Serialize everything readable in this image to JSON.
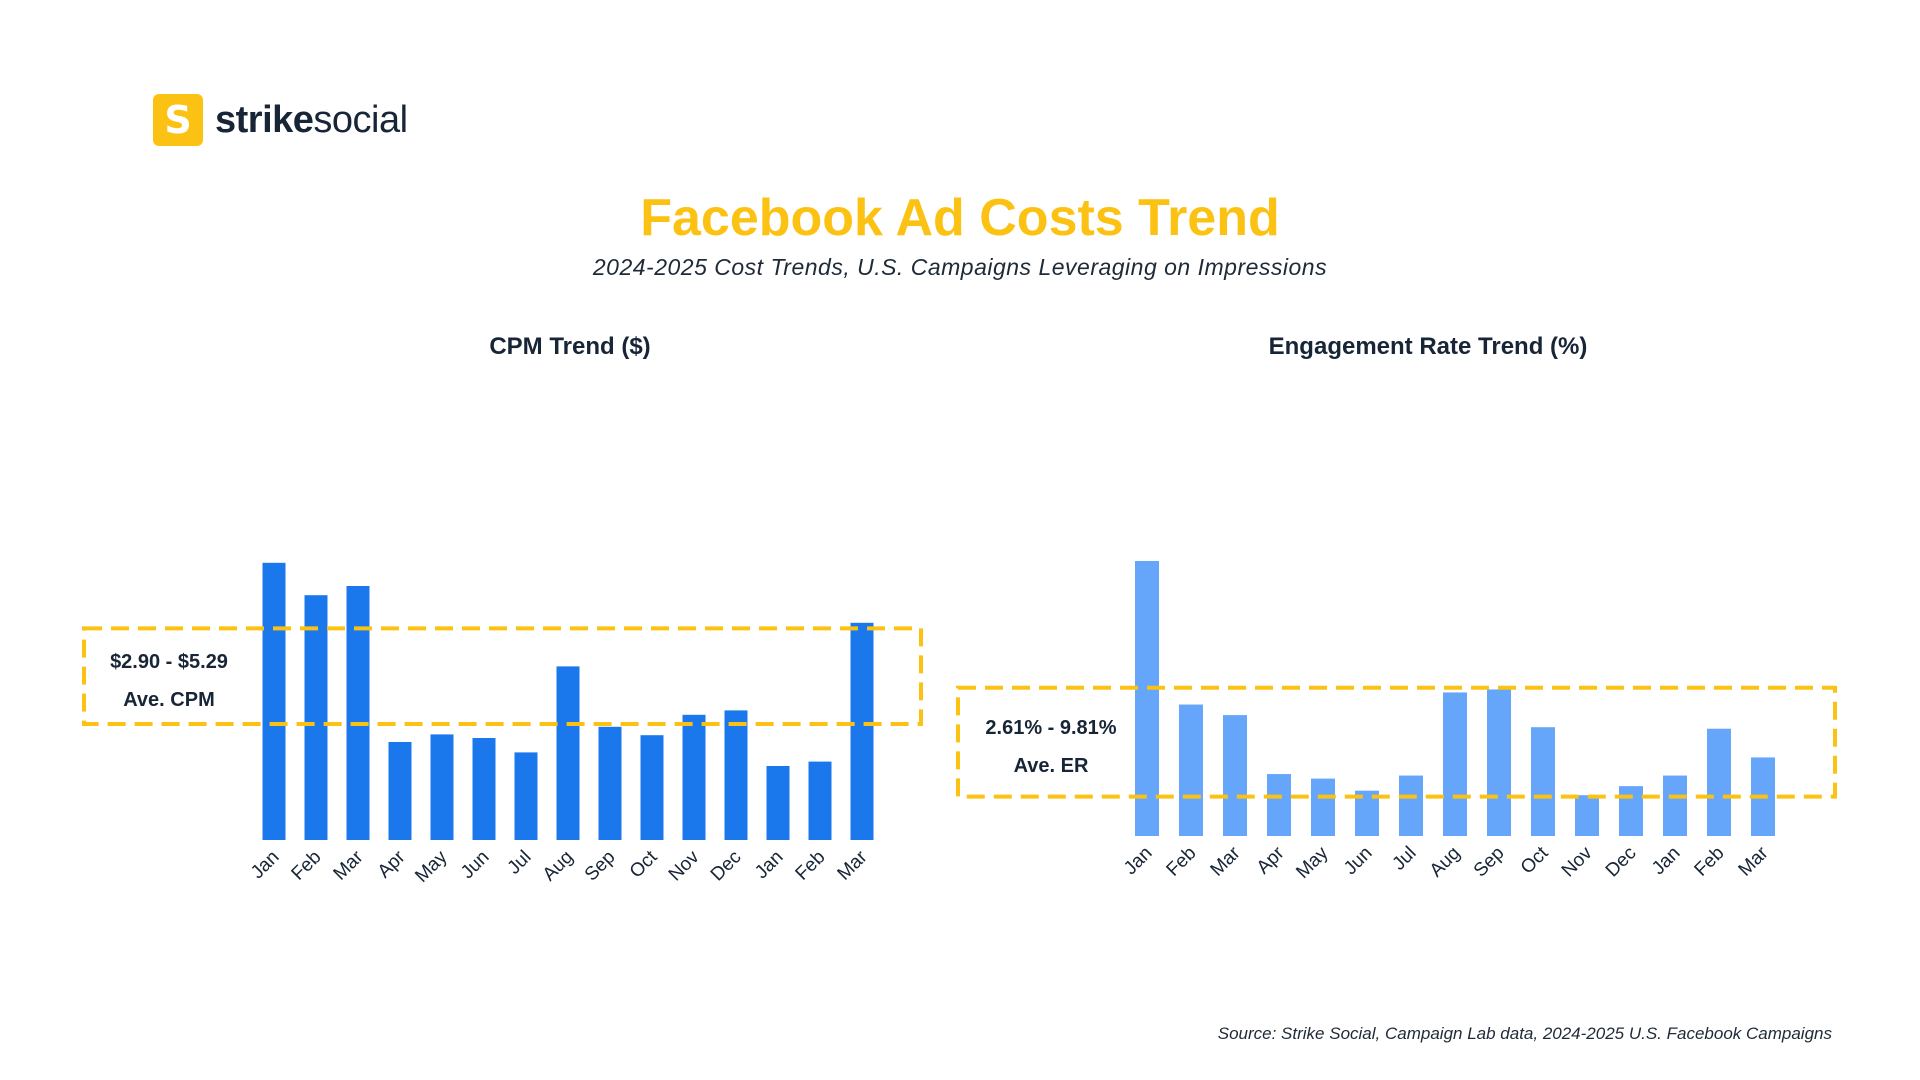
{
  "brand": {
    "mark": "S",
    "name_bold": "strike",
    "name_light": "social",
    "color": "#fcc213"
  },
  "header": {
    "title": "Facebook Ad Costs Trend",
    "subtitle": "2024-2025 Cost Trends, U.S. Campaigns Leveraging on Impressions"
  },
  "source": "Source: Strike Social, Campaign Lab data, 2024-2025 U.S. Facebook Campaigns",
  "chart_data": [
    {
      "type": "bar",
      "title": "CPM Trend ($)",
      "categories": [
        "Jan",
        "Feb",
        "Mar",
        "Apr",
        "May",
        "Jun",
        "Jul",
        "Aug",
        "Sep",
        "Oct",
        "Nov",
        "Dec",
        "Jan",
        "Feb",
        "Mar"
      ],
      "values": [
        6.93,
        6.12,
        6.35,
        2.45,
        2.64,
        2.55,
        2.19,
        4.34,
        2.83,
        2.62,
        3.13,
        3.24,
        1.85,
        1.96,
        5.43
      ],
      "ylim": [
        0,
        7
      ],
      "color": "#1a78ec",
      "band": {
        "range": [
          2.9,
          5.29
        ],
        "label": "$2.90 - $5.29",
        "caption": "Ave. CPM"
      }
    },
    {
      "type": "bar",
      "title": "Engagement Rate Trend (%)",
      "categories": [
        "Jan",
        "Feb",
        "Mar",
        "Apr",
        "May",
        "Jun",
        "Jul",
        "Aug",
        "Sep",
        "Oct",
        "Nov",
        "Dec",
        "Jan",
        "Feb",
        "Mar"
      ],
      "values": [
        18.2,
        8.7,
        8.0,
        4.1,
        3.8,
        3.0,
        4.0,
        9.5,
        9.7,
        7.2,
        2.7,
        3.3,
        4.0,
        7.1,
        5.2
      ],
      "ylim": [
        0,
        18.2
      ],
      "color": "#65a6fa",
      "band": {
        "range": [
          2.61,
          9.81
        ],
        "label": "2.61% - 9.81%",
        "caption": "Ave. ER"
      }
    }
  ],
  "colors": {
    "accent": "#fcc213",
    "text": "#172536"
  }
}
